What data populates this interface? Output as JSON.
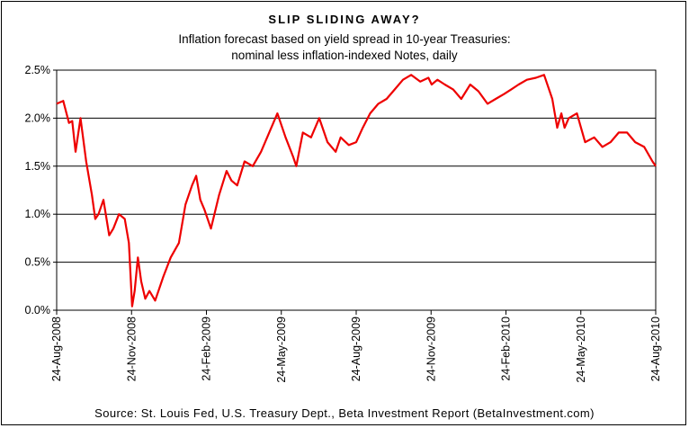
{
  "chart_data": {
    "type": "line",
    "title": "SLIP SLIDING AWAY?",
    "subtitle": [
      "Inflation forecast based on yield spread in 10-year Treasuries:",
      "nominal less inflation-indexed Notes, daily"
    ],
    "source": "Source: St. Louis Fed, U.S. Treasury Dept., Beta Investment Report (BetaInvestment.com)",
    "xlabel": "",
    "ylabel": "",
    "x_ticks": [
      "24-Aug-2008",
      "24-Nov-2008",
      "24-Feb-2009",
      "24-May-2009",
      "24-Aug-2009",
      "24-Nov-2009",
      "24-Feb-2010",
      "24-May-2010",
      "24-Aug-2010"
    ],
    "y_ticks": [
      "0.0%",
      "0.5%",
      "1.0%",
      "1.5%",
      "2.0%",
      "2.5%"
    ],
    "ylim": [
      0,
      2.5
    ],
    "grid": "horizontal",
    "line_color": "#ee0000",
    "series": [
      {
        "x": [
          "2008-08-24",
          "2008-09-01",
          "2008-09-08",
          "2008-09-12",
          "2008-09-16",
          "2008-09-22",
          "2008-09-29",
          "2008-10-06",
          "2008-10-10",
          "2008-10-14",
          "2008-10-20",
          "2008-10-27",
          "2008-11-01",
          "2008-11-08",
          "2008-11-15",
          "2008-11-20",
          "2008-11-24",
          "2008-11-27",
          "2008-12-01",
          "2008-12-05",
          "2008-12-10",
          "2008-12-15",
          "2008-12-22",
          "2009-01-01",
          "2009-01-10",
          "2009-01-20",
          "2009-01-28",
          "2009-02-05",
          "2009-02-10",
          "2009-02-15",
          "2009-02-20",
          "2009-02-28",
          "2009-03-10",
          "2009-03-19",
          "2009-03-25",
          "2009-04-01",
          "2009-04-10",
          "2009-04-20",
          "2009-04-30",
          "2009-05-10",
          "2009-05-20",
          "2009-05-30",
          "2009-06-08",
          "2009-06-12",
          "2009-06-20",
          "2009-06-30",
          "2009-07-10",
          "2009-07-20",
          "2009-07-30",
          "2009-08-05",
          "2009-08-15",
          "2009-08-24",
          "2009-09-01",
          "2009-09-10",
          "2009-09-20",
          "2009-09-30",
          "2009-10-10",
          "2009-10-20",
          "2009-10-30",
          "2009-11-10",
          "2009-11-20",
          "2009-11-24",
          "2009-12-01",
          "2009-12-10",
          "2009-12-20",
          "2009-12-30",
          "2010-01-10",
          "2010-01-20",
          "2010-01-31",
          "2010-02-10",
          "2010-02-20",
          "2010-03-01",
          "2010-03-10",
          "2010-03-20",
          "2010-03-31",
          "2010-04-10",
          "2010-04-20",
          "2010-04-26",
          "2010-05-01",
          "2010-05-05",
          "2010-05-10",
          "2010-05-20",
          "2010-05-30",
          "2010-06-10",
          "2010-06-20",
          "2010-06-30",
          "2010-07-10",
          "2010-07-20",
          "2010-07-30",
          "2010-08-10",
          "2010-08-20",
          "2010-08-24"
        ],
        "values": [
          2.15,
          2.18,
          1.95,
          1.97,
          1.65,
          2.0,
          1.55,
          1.2,
          0.95,
          1.0,
          1.15,
          0.78,
          0.85,
          1.0,
          0.95,
          0.7,
          0.04,
          0.2,
          0.55,
          0.3,
          0.12,
          0.2,
          0.1,
          0.35,
          0.55,
          0.7,
          1.1,
          1.3,
          1.4,
          1.15,
          1.05,
          0.85,
          1.2,
          1.45,
          1.35,
          1.3,
          1.55,
          1.5,
          1.65,
          1.85,
          2.05,
          1.8,
          1.6,
          1.5,
          1.85,
          1.8,
          2.0,
          1.75,
          1.65,
          1.8,
          1.72,
          1.75,
          1.9,
          2.05,
          2.15,
          2.2,
          2.3,
          2.4,
          2.45,
          2.38,
          2.42,
          2.35,
          2.4,
          2.35,
          2.3,
          2.2,
          2.35,
          2.28,
          2.15,
          2.2,
          2.25,
          2.3,
          2.35,
          2.4,
          2.42,
          2.45,
          2.2,
          1.9,
          2.05,
          1.9,
          2.0,
          2.05,
          1.75,
          1.8,
          1.7,
          1.75,
          1.85,
          1.85,
          1.75,
          1.7,
          1.55,
          1.5
        ]
      }
    ]
  }
}
